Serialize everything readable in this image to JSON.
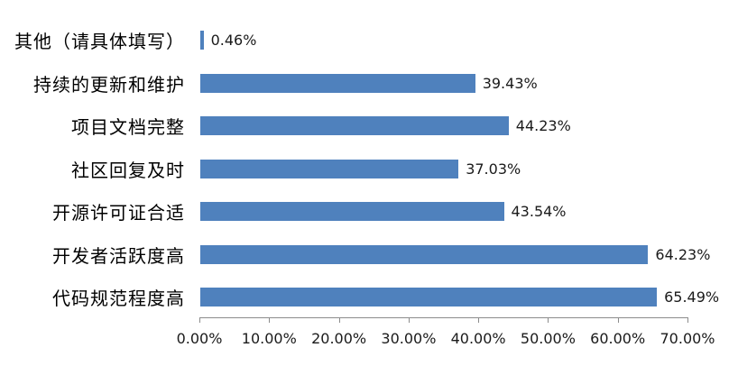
{
  "chart_data": {
    "type": "bar",
    "orientation": "horizontal",
    "title": "",
    "categories": [
      "其他（请具体填写）",
      "持续的更新和维护",
      "项目文档完整",
      "社区回复及时",
      "开源许可证合适",
      "开发者活跃度高",
      "代码规范程度高"
    ],
    "values": [
      0.46,
      39.43,
      44.23,
      37.03,
      43.54,
      64.23,
      65.49
    ],
    "value_labels": [
      "0.46%",
      "39.43%",
      "44.23%",
      "37.03%",
      "43.54%",
      "64.23%",
      "65.49%"
    ],
    "xlim": [
      0,
      70
    ],
    "x_tick_labels": [
      "0.00%",
      "10.00%",
      "20.00%",
      "30.00%",
      "40.00%",
      "50.00%",
      "60.00%",
      "70.00%"
    ],
    "grid": false,
    "bar_color": "#4F81BD",
    "axis_color": "#8C8C8C",
    "category_color": "#000000",
    "value_color": "#1A1A1A"
  }
}
